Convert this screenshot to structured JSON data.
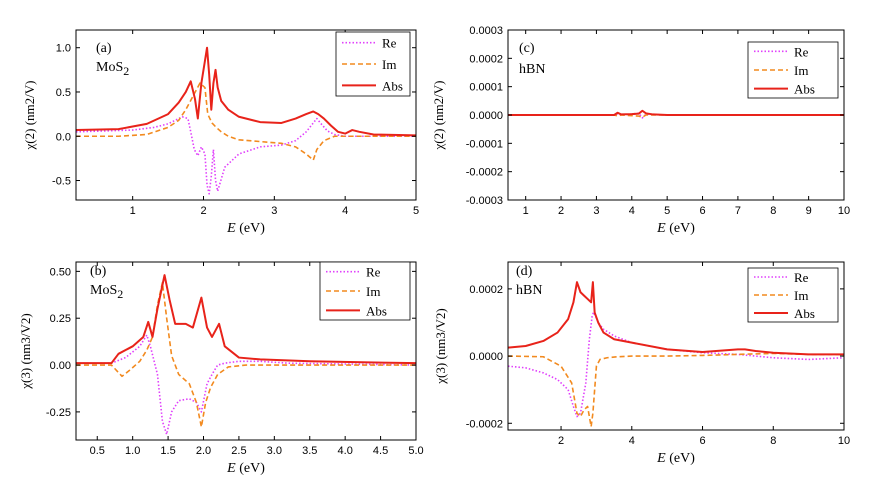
{
  "figure": {
    "panels": [
      "(a)",
      "(b)",
      "(c)",
      "(d)"
    ]
  },
  "chart_data": [
    {
      "id": "a",
      "type": "line",
      "panel_label": "(a)",
      "material": "MoS",
      "material_sub": "2",
      "xlabel": "E",
      "xlabel_unit": " (eV)",
      "ylabel": "χ(2) (nm2/V)",
      "xlim": [
        0.2,
        5.0
      ],
      "ylim": [
        -0.72,
        1.2
      ],
      "xticks": [
        1,
        2,
        3,
        4,
        5
      ],
      "xtick_labels": [
        "1",
        "2",
        "3",
        "4",
        "5"
      ],
      "yticks": [
        -0.5,
        0.0,
        0.5,
        1.0
      ],
      "ytick_labels": [
        "-0.5",
        "0.0",
        "0.5",
        "1.0"
      ],
      "legend": [
        "Re",
        "Im",
        "Abs"
      ],
      "series": [
        {
          "name": "Re",
          "color": "#e040fb",
          "dash": "dotted",
          "x": [
            0.2,
            1.0,
            1.3,
            1.5,
            1.6,
            1.7,
            1.78,
            1.82,
            1.87,
            1.92,
            1.97,
            2.02,
            2.05,
            2.08,
            2.11,
            2.14,
            2.17,
            2.2,
            2.3,
            2.5,
            2.8,
            3.1,
            3.3,
            3.45,
            3.55,
            3.6,
            3.65,
            3.75,
            3.85,
            4.0,
            4.3,
            5.0
          ],
          "y": [
            0.05,
            0.07,
            0.1,
            0.14,
            0.18,
            0.22,
            0.2,
            0.05,
            -0.15,
            -0.22,
            -0.12,
            -0.2,
            -0.55,
            -0.65,
            -0.45,
            -0.15,
            -0.5,
            -0.62,
            -0.35,
            -0.2,
            -0.12,
            -0.1,
            -0.05,
            0.05,
            0.15,
            0.2,
            0.15,
            0.06,
            0.02,
            0.0,
            0.0,
            0.0
          ]
        },
        {
          "name": "Im",
          "color": "#f28a1f",
          "dash": "dashed",
          "x": [
            0.2,
            0.8,
            1.2,
            1.5,
            1.65,
            1.75,
            1.85,
            1.95,
            2.02,
            2.06,
            2.12,
            2.18,
            2.25,
            2.35,
            2.5,
            2.8,
            3.1,
            3.3,
            3.45,
            3.55,
            3.6,
            3.7,
            3.85,
            4.0,
            4.3,
            5.0
          ],
          "y": [
            0.0,
            0.0,
            0.02,
            0.1,
            0.18,
            0.3,
            0.45,
            0.6,
            0.55,
            0.25,
            0.15,
            0.1,
            0.05,
            0.0,
            -0.04,
            -0.06,
            -0.08,
            -0.12,
            -0.2,
            -0.27,
            -0.15,
            -0.05,
            0.0,
            0.0,
            0.0,
            0.0
          ]
        },
        {
          "name": "Abs",
          "color": "#e8231a",
          "dash": "solid",
          "x": [
            0.2,
            0.8,
            1.2,
            1.5,
            1.65,
            1.75,
            1.82,
            1.88,
            1.92,
            1.97,
            2.02,
            2.05,
            2.08,
            2.11,
            2.14,
            2.17,
            2.2,
            2.25,
            2.35,
            2.5,
            2.8,
            3.1,
            3.3,
            3.45,
            3.55,
            3.62,
            3.7,
            3.8,
            3.9,
            4.0,
            4.1,
            4.2,
            4.4,
            5.0
          ],
          "y": [
            0.07,
            0.08,
            0.14,
            0.25,
            0.38,
            0.5,
            0.62,
            0.42,
            0.2,
            0.6,
            0.85,
            1.0,
            0.7,
            0.3,
            0.6,
            0.75,
            0.55,
            0.4,
            0.3,
            0.22,
            0.16,
            0.15,
            0.2,
            0.25,
            0.28,
            0.25,
            0.2,
            0.12,
            0.05,
            0.03,
            0.07,
            0.05,
            0.02,
            0.01
          ]
        }
      ]
    },
    {
      "id": "b",
      "type": "line",
      "panel_label": "(b)",
      "material": "MoS",
      "material_sub": "2",
      "xlabel": "E",
      "xlabel_unit": " (eV)",
      "ylabel": "χ(3) (nm3/V2)",
      "xlim": [
        0.2,
        5.0
      ],
      "ylim": [
        -0.4,
        0.55
      ],
      "xticks": [
        0.5,
        1.0,
        1.5,
        2.0,
        2.5,
        3.0,
        3.5,
        4.0,
        4.5,
        5.0
      ],
      "xtick_labels": [
        "0.5",
        "1.0",
        "1.5",
        "2.0",
        "2.5",
        "3.0",
        "3.5",
        "4.0",
        "4.5",
        "5.0"
      ],
      "yticks": [
        -0.25,
        0.0,
        0.25,
        0.5
      ],
      "ytick_labels": [
        "-0.25",
        "0.00",
        "0.25",
        "0.50"
      ],
      "legend": [
        "Re",
        "Im",
        "Abs"
      ],
      "series": [
        {
          "name": "Re",
          "color": "#e040fb",
          "dash": "dotted",
          "x": [
            0.2,
            0.7,
            0.9,
            1.1,
            1.2,
            1.25,
            1.35,
            1.42,
            1.48,
            1.55,
            1.65,
            1.8,
            1.9,
            1.97,
            2.05,
            2.12,
            2.2,
            2.3,
            2.5,
            2.8,
            3.2,
            5.0
          ],
          "y": [
            0.01,
            0.01,
            0.04,
            0.1,
            0.16,
            0.1,
            -0.05,
            -0.3,
            -0.37,
            -0.25,
            -0.19,
            -0.18,
            -0.2,
            -0.25,
            -0.1,
            -0.05,
            0.0,
            0.01,
            0.02,
            0.02,
            0.01,
            0.0
          ]
        },
        {
          "name": "Im",
          "color": "#f28a1f",
          "dash": "dashed",
          "x": [
            0.2,
            0.7,
            0.85,
            0.95,
            1.1,
            1.2,
            1.28,
            1.35,
            1.42,
            1.48,
            1.55,
            1.65,
            1.8,
            1.9,
            1.97,
            2.03,
            2.1,
            2.2,
            2.35,
            2.6,
            3.0,
            5.0
          ],
          "y": [
            0.0,
            0.0,
            -0.06,
            -0.03,
            0.02,
            0.08,
            0.15,
            0.32,
            0.44,
            0.25,
            0.05,
            -0.05,
            -0.1,
            -0.2,
            -0.33,
            -0.2,
            -0.12,
            -0.05,
            -0.01,
            0.0,
            0.0,
            0.0
          ]
        },
        {
          "name": "Abs",
          "color": "#e8231a",
          "dash": "solid",
          "x": [
            0.2,
            0.7,
            0.8,
            1.0,
            1.15,
            1.22,
            1.28,
            1.35,
            1.45,
            1.52,
            1.6,
            1.75,
            1.85,
            1.97,
            2.05,
            2.12,
            2.22,
            2.3,
            2.5,
            2.8,
            3.5,
            5.0
          ],
          "y": [
            0.01,
            0.01,
            0.06,
            0.1,
            0.15,
            0.23,
            0.15,
            0.3,
            0.48,
            0.35,
            0.22,
            0.22,
            0.2,
            0.36,
            0.2,
            0.15,
            0.22,
            0.1,
            0.04,
            0.03,
            0.02,
            0.01
          ]
        }
      ]
    },
    {
      "id": "c",
      "type": "line",
      "panel_label": "(c)",
      "material": "hBN",
      "xlabel": "E",
      "xlabel_unit": " (eV)",
      "ylabel": "χ(2) (nm2/V)",
      "xlim": [
        0.5,
        10.0
      ],
      "ylim": [
        -0.0003,
        0.0003
      ],
      "xticks": [
        1,
        2,
        3,
        4,
        5,
        6,
        7,
        8,
        9,
        10
      ],
      "xtick_labels": [
        "1",
        "2",
        "3",
        "4",
        "5",
        "6",
        "7",
        "8",
        "9",
        "10"
      ],
      "yticks": [
        -0.0003,
        -0.0002,
        -0.0001,
        0.0,
        0.0001,
        0.0002,
        0.0003
      ],
      "ytick_labels": [
        "-0.0003",
        "-0.0002",
        "-0.0001",
        "0.0000",
        "0.0001",
        "0.0002",
        "0.0003"
      ],
      "legend": [
        "Re",
        "Im",
        "Abs"
      ],
      "series": [
        {
          "name": "Re",
          "color": "#e040fb",
          "dash": "dotted",
          "x": [
            0.5,
            3.5,
            3.6,
            3.7,
            4.2,
            4.3,
            4.4,
            5.0,
            10.0
          ],
          "y": [
            0,
            0,
            4e-06,
            0,
            6e-06,
            -1e-05,
            3e-06,
            0,
            0
          ]
        },
        {
          "name": "Im",
          "color": "#f28a1f",
          "dash": "dashed",
          "x": [
            0.5,
            3.5,
            3.6,
            3.7,
            4.2,
            4.3,
            4.4,
            5.0,
            10.0
          ],
          "y": [
            0,
            0,
            -3e-06,
            0,
            -4e-06,
            -8e-06,
            0,
            0,
            0
          ]
        },
        {
          "name": "Abs",
          "color": "#e8231a",
          "dash": "solid",
          "x": [
            0.5,
            3.5,
            3.6,
            3.7,
            4.0,
            4.2,
            4.3,
            4.4,
            4.6,
            5.0,
            10.0
          ],
          "y": [
            0,
            0,
            8e-06,
            2e-06,
            3e-06,
            5e-06,
            1.5e-05,
            6e-06,
            2e-06,
            0,
            0
          ]
        }
      ]
    },
    {
      "id": "d",
      "type": "line",
      "panel_label": "(d)",
      "material": "hBN",
      "xlabel": "E",
      "xlabel_unit": " (eV)",
      "ylabel": "χ(3) (nm3/V2)",
      "xlim": [
        0.5,
        10.0
      ],
      "ylim": [
        -0.00022,
        0.00028
      ],
      "xticks": [
        2,
        4,
        6,
        8,
        10
      ],
      "xtick_labels": [
        "2",
        "4",
        "6",
        "8",
        "10"
      ],
      "yticks": [
        -0.0002,
        0.0,
        0.0002
      ],
      "ytick_labels": [
        "-0.0002",
        "0.0000",
        "0.0002"
      ],
      "legend": [
        "Re",
        "Im",
        "Abs"
      ],
      "series": [
        {
          "name": "Re",
          "color": "#e040fb",
          "dash": "dotted",
          "x": [
            0.5,
            1.0,
            1.5,
            1.9,
            2.2,
            2.35,
            2.45,
            2.55,
            2.7,
            2.8,
            2.88,
            2.92,
            2.97,
            3.05,
            3.2,
            3.5,
            4.0,
            5.0,
            6.0,
            7.0,
            8.0,
            9.0,
            10.0
          ],
          "y": [
            -3e-05,
            -3.5e-05,
            -5e-05,
            -7e-05,
            -0.0001,
            -0.00015,
            -0.00018,
            -0.00017,
            -8e-05,
            5e-05,
            0.00012,
            0.00013,
            0.00012,
            0.0001,
            8e-05,
            6e-05,
            4e-05,
            2e-05,
            1e-05,
            5e-06,
            -5e-06,
            -1e-05,
            -5e-06
          ]
        },
        {
          "name": "Im",
          "color": "#f28a1f",
          "dash": "dashed",
          "x": [
            0.5,
            1.5,
            2.0,
            2.3,
            2.45,
            2.55,
            2.65,
            2.75,
            2.85,
            2.9,
            3.0,
            3.1,
            3.3,
            3.6,
            4.0,
            5.0,
            6.0,
            7.0,
            8.0,
            9.0,
            10.0
          ],
          "y": [
            0,
            -2e-06,
            -3e-05,
            -8e-05,
            -0.00017,
            -0.00018,
            -0.00016,
            -0.00015,
            -0.00021,
            -0.00017,
            -3e-05,
            -1e-05,
            -5e-06,
            -2e-06,
            0,
            0,
            2e-06,
            5e-06,
            8e-06,
            5e-06,
            5e-06
          ]
        },
        {
          "name": "Abs",
          "color": "#e8231a",
          "dash": "solid",
          "x": [
            0.5,
            1.0,
            1.5,
            1.9,
            2.2,
            2.35,
            2.45,
            2.55,
            2.65,
            2.75,
            2.85,
            2.9,
            2.95,
            3.05,
            3.2,
            3.5,
            4.0,
            5.0,
            6.0,
            7.0,
            7.2,
            7.5,
            8.0,
            9.0,
            10.0
          ],
          "y": [
            2.5e-05,
            3e-05,
            4.5e-05,
            7e-05,
            0.00011,
            0.00016,
            0.00022,
            0.00019,
            0.00018,
            0.00017,
            0.00016,
            0.00022,
            0.00013,
            0.0001,
            7e-05,
            5e-05,
            4e-05,
            2e-05,
            1.2e-05,
            2e-05,
            2e-05,
            1.5e-05,
            1e-05,
            5e-06,
            5e-06
          ]
        }
      ]
    }
  ]
}
